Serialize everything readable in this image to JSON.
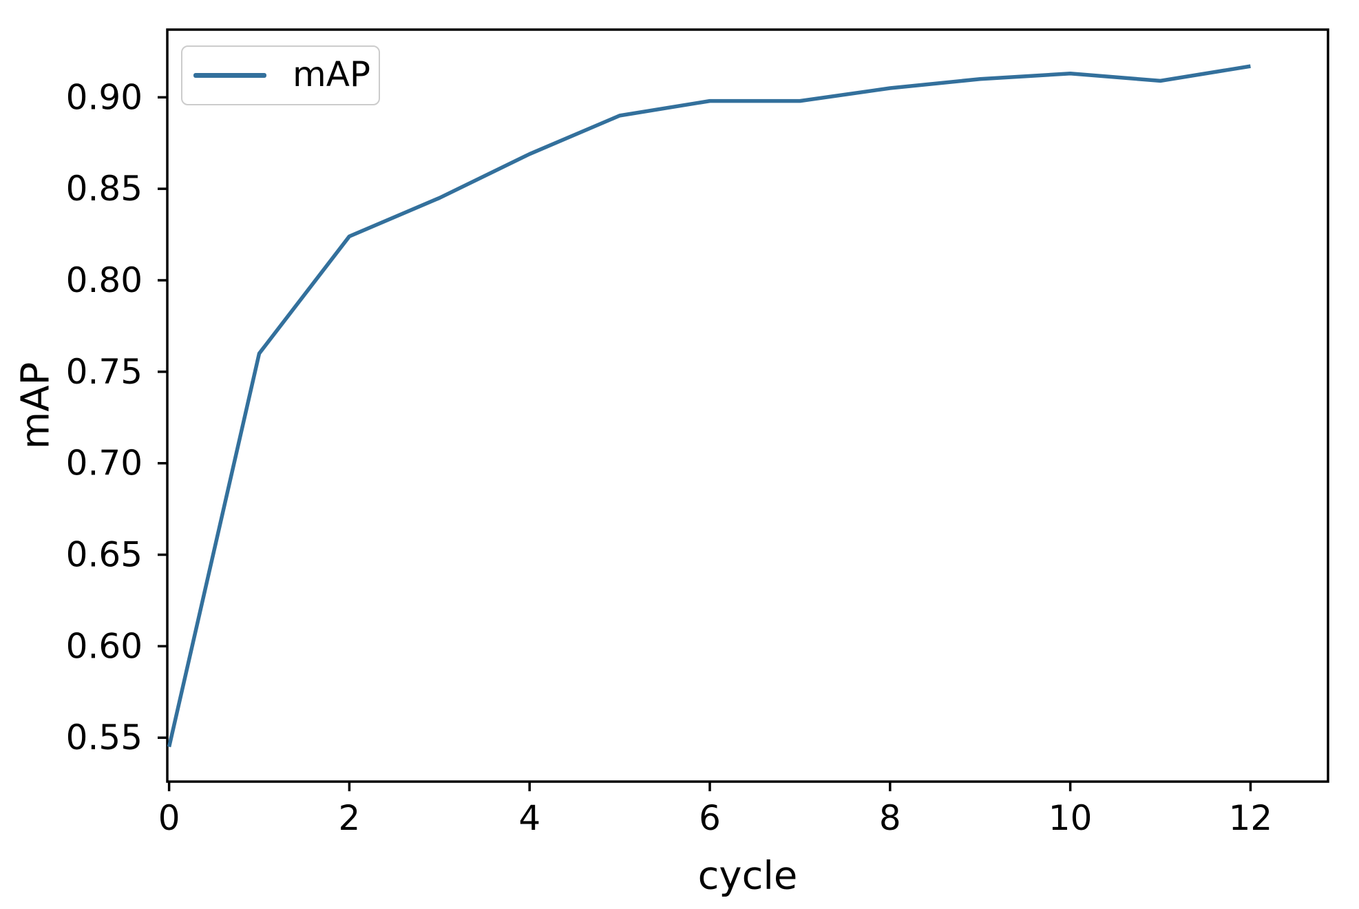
{
  "figure": {
    "background": "#ffffff"
  },
  "colors": {
    "line": "#33709c",
    "axis": "#000000",
    "text": "#000000",
    "legend_border": "#cccccc"
  },
  "chart_data": {
    "type": "line",
    "title": "",
    "xlabel": "cycle",
    "ylabel": "mAP",
    "x": [
      0,
      1,
      2,
      3,
      4,
      5,
      6,
      7,
      8,
      9,
      10,
      11,
      12
    ],
    "series": [
      {
        "name": "mAP",
        "color": "#33709c",
        "values": [
          0.545,
          0.76,
          0.824,
          0.845,
          0.869,
          0.89,
          0.898,
          0.898,
          0.905,
          0.91,
          0.913,
          0.909,
          0.917
        ]
      }
    ],
    "xlim": [
      -0.02,
      12.86
    ],
    "ylim": [
      0.526,
      0.937
    ],
    "xticks": {
      "values": [
        0,
        2,
        4,
        6,
        8,
        10,
        12
      ],
      "labels": [
        "0",
        "2",
        "4",
        "6",
        "8",
        "10",
        "12"
      ]
    },
    "yticks": {
      "values": [
        0.55,
        0.6,
        0.65,
        0.7,
        0.75,
        0.8,
        0.85,
        0.9
      ],
      "labels": [
        "0.55",
        "0.60",
        "0.65",
        "0.70",
        "0.75",
        "0.80",
        "0.85",
        "0.90"
      ]
    },
    "grid": false,
    "legend": {
      "position": "upper left",
      "entries": [
        "mAP"
      ]
    }
  }
}
